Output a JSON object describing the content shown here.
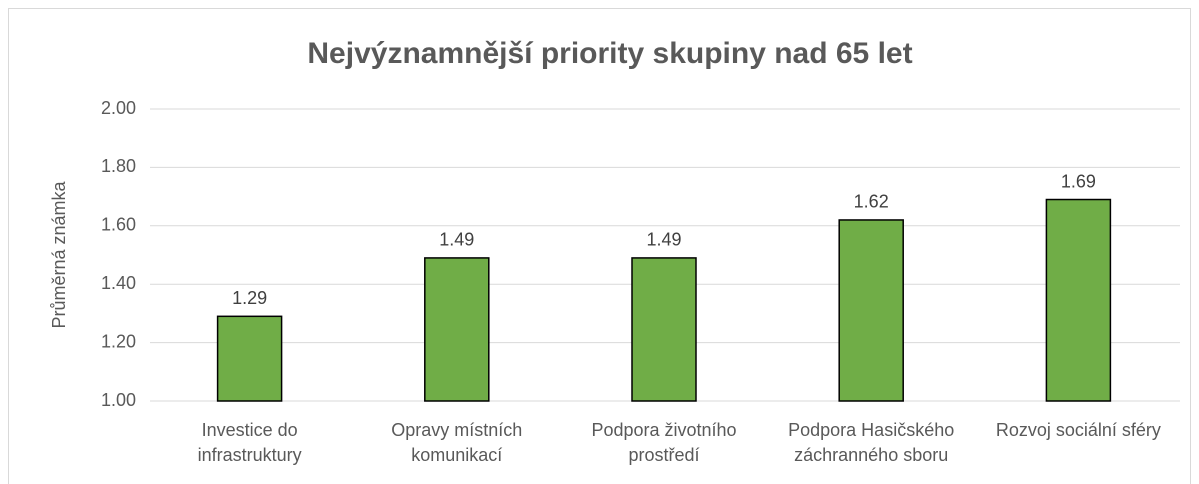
{
  "chart_data": {
    "type": "bar",
    "title": "Nejvýznamnější priority skupiny nad 65 let",
    "ylabel": "Průměrná známka",
    "categories": [
      "Investice do infrastruktury",
      "Opravy místních komunikací",
      "Podpora životního prostředí",
      "Podpora Hasičského záchranného sboru",
      "Rozvoj sociální sféry"
    ],
    "values": [
      1.29,
      1.49,
      1.49,
      1.62,
      1.69
    ],
    "color": "#70ad47",
    "ylim": [
      1,
      2
    ],
    "yticks": [
      {
        "value": 1,
        "label": "1.00"
      },
      {
        "value": 1.2,
        "label": "1.20"
      },
      {
        "value": 1.4,
        "label": "1.40"
      },
      {
        "value": 1.6,
        "label": "1.60"
      },
      {
        "value": 1.8,
        "label": "1.80"
      },
      {
        "value": 2,
        "label": "2.00"
      }
    ],
    "grid": true
  }
}
